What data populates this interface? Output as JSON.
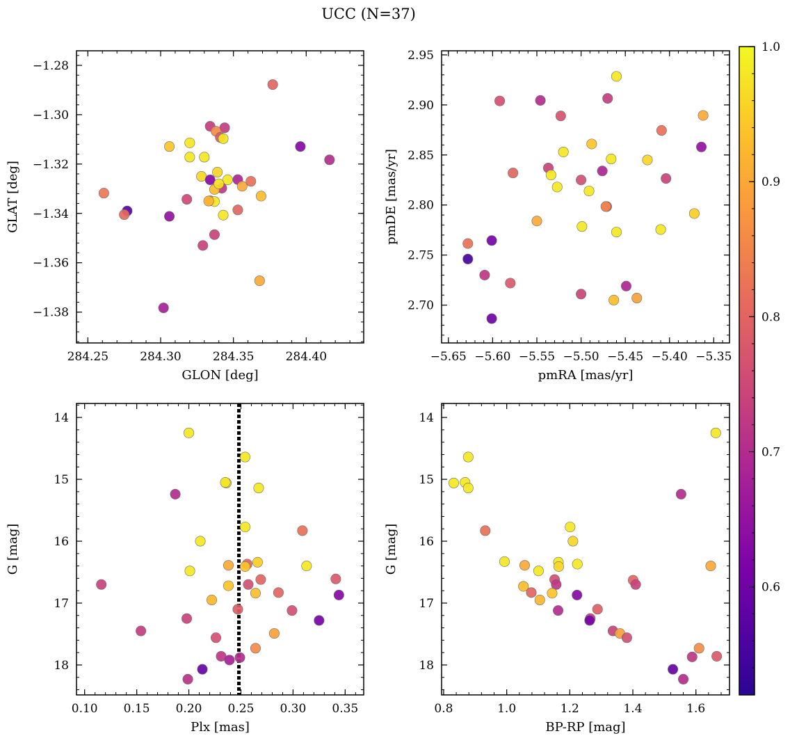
{
  "figure": {
    "title": "UCC (N=37)"
  },
  "colorbar": {
    "vmin": 0.52,
    "vmax": 1.0,
    "ticks": [
      0.6,
      0.7,
      0.8,
      0.9,
      1.0
    ],
    "tick_labels": [
      "0.6",
      "0.7",
      "0.8",
      "0.9",
      "1.0"
    ],
    "colormap": "plasma"
  },
  "chart_data": [
    {
      "type": "scatter",
      "xlabel": "GLON [deg]",
      "ylabel": "GLAT [deg]",
      "xlim": [
        284.2422,
        284.4395
      ],
      "ylim": [
        -1.3925,
        -1.2741
      ],
      "xticks": [
        284.25,
        284.3,
        284.35,
        284.4
      ],
      "xtick_labels": [
        "284.25",
        "284.30",
        "284.35",
        "284.40"
      ],
      "yticks": [
        -1.28,
        -1.3,
        -1.32,
        -1.34,
        -1.36,
        -1.38
      ],
      "ytick_labels": [
        "−1.28",
        "−1.30",
        "−1.32",
        "−1.34",
        "−1.36",
        "−1.38"
      ],
      "x": [
        284.377,
        284.334,
        284.344,
        284.338,
        284.341,
        284.343,
        284.306,
        284.32,
        284.396,
        284.32,
        284.33,
        284.416,
        284.339,
        284.328,
        284.353,
        284.346,
        284.334,
        284.362,
        284.356,
        284.342,
        284.337,
        284.261,
        284.369,
        284.318,
        284.334,
        284.337,
        284.277,
        284.353,
        284.275,
        284.306,
        284.343,
        284.337,
        284.329,
        284.368,
        284.302,
        284.333,
        284.34
      ],
      "y": [
        -1.2878,
        -1.3047,
        -1.3053,
        -1.3067,
        -1.3092,
        -1.3097,
        -1.3129,
        -1.3114,
        -1.3129,
        -1.3172,
        -1.3172,
        -1.3183,
        -1.3233,
        -1.325,
        -1.3263,
        -1.3264,
        -1.3264,
        -1.327,
        -1.329,
        -1.3298,
        -1.3303,
        -1.3318,
        -1.333,
        -1.3343,
        -1.3349,
        -1.3352,
        -1.339,
        -1.3386,
        -1.3405,
        -1.3412,
        -1.3407,
        -1.3486,
        -1.353,
        -1.3673,
        -1.3783,
        -1.335,
        -1.328
      ],
      "c": [
        0.8,
        0.73,
        0.73,
        0.86,
        0.78,
        0.98,
        0.94,
        0.98,
        0.63,
        0.98,
        0.98,
        0.7,
        0.96,
        0.96,
        0.69,
        0.98,
        0.63,
        0.82,
        0.9,
        0.72,
        0.93,
        0.83,
        0.93,
        0.75,
        0.8,
        0.98,
        0.57,
        0.8,
        0.81,
        0.65,
        0.98,
        0.74,
        0.74,
        0.9,
        0.68,
        0.92,
        0.97
      ]
    },
    {
      "type": "scatter",
      "xlabel": "pmRA [mas/yr]",
      "ylabel": "pmDE [mas/yr]",
      "xlim": [
        -5.6577,
        -5.3322
      ],
      "ylim": [
        2.6622,
        2.9541
      ],
      "xticks": [
        -5.65,
        -5.6,
        -5.55,
        -5.5,
        -5.45,
        -5.4,
        -5.35
      ],
      "xtick_labels": [
        "−5.65",
        "−5.60",
        "−5.55",
        "−5.50",
        "−5.45",
        "−5.40",
        "−5.35"
      ],
      "yticks": [
        2.7,
        2.75,
        2.8,
        2.85,
        2.9,
        2.95
      ],
      "ytick_labels": [
        "2.70",
        "2.75",
        "2.80",
        "2.85",
        "2.90",
        "2.95"
      ],
      "x": [
        -5.46,
        -5.592,
        -5.546,
        -5.47,
        -5.523,
        -5.362,
        -5.409,
        -5.488,
        -5.364,
        -5.52,
        -5.425,
        -5.466,
        -5.537,
        -5.534,
        -5.476,
        -5.577,
        -5.5,
        -5.527,
        -5.491,
        -5.471,
        -5.404,
        -5.55,
        -5.372,
        -5.499,
        -5.41,
        -5.46,
        -5.628,
        -5.601,
        -5.628,
        -5.609,
        -5.58,
        -5.5,
        -5.449,
        -5.437,
        -5.463,
        -5.601,
        -5.472
      ],
      "y": [
        2.9285,
        2.904,
        2.9045,
        2.9065,
        2.889,
        2.8895,
        2.8745,
        2.861,
        2.858,
        2.853,
        2.845,
        2.846,
        2.837,
        2.83,
        2.834,
        2.832,
        2.825,
        2.818,
        2.814,
        2.7985,
        2.8265,
        2.784,
        2.7915,
        2.7785,
        2.7755,
        2.773,
        2.7615,
        2.7645,
        2.746,
        2.73,
        2.722,
        2.711,
        2.719,
        2.707,
        2.705,
        2.6865,
        2.7985
      ],
      "c": [
        0.98,
        0.76,
        0.7,
        0.73,
        0.77,
        0.9,
        0.82,
        0.94,
        0.65,
        0.98,
        0.96,
        0.98,
        0.74,
        0.98,
        0.69,
        0.8,
        0.76,
        0.98,
        0.98,
        0.78,
        0.74,
        0.9,
        0.95,
        0.98,
        0.98,
        0.98,
        0.82,
        0.61,
        0.55,
        0.72,
        0.78,
        0.74,
        0.69,
        0.89,
        0.93,
        0.6,
        0.85
      ]
    },
    {
      "type": "scatter",
      "xlabel": "Plx [mas]",
      "ylabel": "G [mag]",
      "xlim": [
        0.0922,
        0.3678
      ],
      "ylim": [
        18.484,
        13.774
      ],
      "xticks": [
        0.1,
        0.15,
        0.2,
        0.25,
        0.3,
        0.35
      ],
      "xtick_labels": [
        "0.10",
        "0.15",
        "0.20",
        "0.25",
        "0.30",
        "0.35"
      ],
      "yticks": [
        14,
        15,
        16,
        17,
        18
      ],
      "ytick_labels": [
        "14",
        "15",
        "16",
        "17",
        "18"
      ],
      "vline": 0.248,
      "x": [
        0.2,
        0.254,
        0.236,
        0.235,
        0.267,
        0.187,
        0.254,
        0.211,
        0.309,
        0.201,
        0.256,
        0.238,
        0.254,
        0.266,
        0.313,
        0.116,
        0.269,
        0.257,
        0.341,
        0.238,
        0.286,
        0.264,
        0.344,
        0.222,
        0.247,
        0.299,
        0.198,
        0.325,
        0.154,
        0.282,
        0.226,
        0.264,
        0.231,
        0.239,
        0.213,
        0.249,
        0.199
      ],
      "y": [
        14.25,
        14.64,
        15.06,
        15.05,
        15.14,
        15.24,
        15.77,
        16.0,
        15.83,
        16.48,
        16.37,
        16.39,
        16.41,
        16.34,
        16.4,
        16.7,
        16.62,
        16.7,
        16.61,
        16.72,
        16.83,
        16.84,
        16.87,
        16.95,
        17.1,
        17.12,
        17.25,
        17.28,
        17.45,
        17.49,
        17.56,
        17.73,
        17.86,
        17.92,
        18.07,
        17.88,
        18.23
      ],
      "c": [
        0.98,
        0.98,
        0.96,
        0.98,
        0.98,
        0.7,
        0.98,
        0.98,
        0.82,
        0.98,
        0.8,
        0.9,
        0.94,
        0.95,
        0.98,
        0.74,
        0.8,
        0.76,
        0.78,
        0.94,
        0.8,
        0.93,
        0.63,
        0.92,
        0.79,
        0.76,
        0.74,
        0.61,
        0.73,
        0.89,
        0.76,
        0.86,
        0.72,
        0.68,
        0.59,
        0.7,
        0.71
      ]
    },
    {
      "type": "scatter",
      "xlabel": "BP-RP [mag]",
      "ylabel": "G [mag]",
      "xlim": [
        0.7935,
        1.7065
      ],
      "ylim": [
        18.484,
        13.774
      ],
      "xticks": [
        0.8,
        1.0,
        1.2,
        1.4,
        1.6
      ],
      "xtick_labels": [
        "0.8",
        "1.0",
        "1.2",
        "1.4",
        "1.6"
      ],
      "yticks": [
        14,
        15,
        16,
        17,
        18
      ],
      "ytick_labels": [
        "14",
        "15",
        "16",
        "17",
        "18"
      ],
      "x": [
        1.663,
        0.878,
        0.832,
        0.868,
        0.878,
        1.553,
        0.932,
        1.201,
        1.21,
        0.993,
        1.057,
        1.101,
        1.164,
        1.165,
        1.224,
        1.647,
        1.152,
        1.401,
        1.409,
        1.157,
        1.144,
        1.053,
        1.078,
        1.223,
        1.105,
        1.163,
        1.265,
        1.288,
        1.263,
        1.337,
        1.359,
        1.381,
        1.61,
        1.588,
        1.666,
        1.527,
        1.56
      ],
      "y": [
        14.25,
        14.64,
        15.06,
        15.05,
        15.14,
        15.24,
        15.83,
        15.77,
        16.0,
        16.33,
        16.39,
        16.48,
        16.34,
        16.41,
        16.37,
        16.4,
        16.62,
        16.63,
        16.7,
        16.7,
        16.84,
        16.73,
        16.83,
        16.87,
        16.95,
        17.12,
        17.25,
        17.1,
        17.28,
        17.45,
        17.49,
        17.56,
        17.73,
        17.87,
        17.86,
        18.07,
        18.23
      ],
      "c": [
        0.98,
        0.98,
        0.98,
        0.98,
        0.98,
        0.7,
        0.82,
        0.98,
        0.96,
        0.98,
        0.9,
        0.98,
        0.98,
        0.96,
        0.98,
        0.9,
        0.76,
        0.8,
        0.74,
        0.72,
        0.94,
        0.93,
        0.8,
        0.63,
        0.92,
        0.7,
        0.74,
        0.79,
        0.61,
        0.74,
        0.89,
        0.76,
        0.86,
        0.72,
        0.78,
        0.59,
        0.7
      ]
    }
  ]
}
